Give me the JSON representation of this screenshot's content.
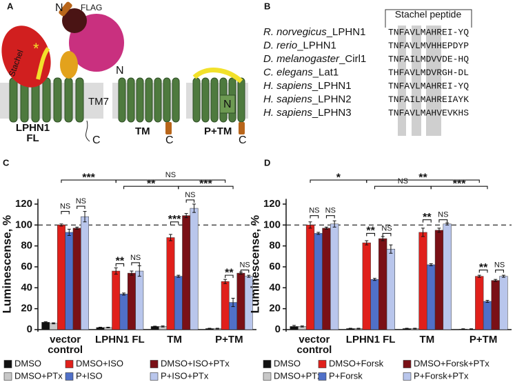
{
  "panels": {
    "a": "A",
    "b": "B",
    "c": "C",
    "d": "D"
  },
  "diagram": {
    "n_label": "N",
    "flag": "FLAG",
    "stachel": "Stachel",
    "star": "*",
    "tm7": "TM7",
    "fl_label": "LPHN1 FL",
    "c_label": "C",
    "tm_n": "N",
    "tm_label": "TM",
    "tm_c": "C",
    "ptm_n": "N",
    "ptm_label": "P+TM",
    "ptm_c": "C"
  },
  "alignment": {
    "title": "Stachel peptide",
    "rows": [
      {
        "species": "R. norvegicus",
        "gene": "_LPHN1",
        "sequence": "TNFAVLMAHREI-YQ"
      },
      {
        "species": "D. rerio",
        "gene": "_LPHN1",
        "sequence": "TNFAVLMVHHEPDYP"
      },
      {
        "species": "D. melanogaster",
        "gene": "_Cirl1",
        "sequence": "TNFAILMDVVDE-HQ"
      },
      {
        "species": "C. elegans",
        "gene": "_Lat1",
        "sequence": "THFAVLMDVRGH-DL"
      },
      {
        "species": "H. sapiens",
        "gene": "_LPHN1",
        "sequence": "TNFAVLMAHREI-YQ"
      },
      {
        "species": "H. sapiens",
        "gene": "_LPHN2",
        "sequence": "TNFAILMAHREIAYK"
      },
      {
        "species": "H. sapiens",
        "gene": "_LPHN3",
        "sequence": "TNFAVLMAHVEVKHS"
      }
    ]
  },
  "chart_data": [
    {
      "type": "bar",
      "ylabel": "Luminescense, %",
      "categories": [
        "vector control",
        "LPHN1 FL",
        "TM",
        "P+TM"
      ],
      "ylim": [
        0,
        125
      ],
      "yticks": [
        0,
        20,
        40,
        60,
        80,
        100,
        120
      ],
      "reference_line": 100,
      "series": [
        {
          "name": "DMSO",
          "color": "#111111",
          "values": [
            7,
            2,
            3,
            1
          ],
          "errors": [
            0.5,
            0.3,
            0.3,
            0.3
          ]
        },
        {
          "name": "DMSO+PTx",
          "color": "#c8c8c8",
          "values": [
            6,
            2,
            3,
            1
          ],
          "errors": [
            0.5,
            0.3,
            0.5,
            0.3
          ]
        },
        {
          "name": "DMSO+ISO",
          "color": "#e0201b",
          "values": [
            100,
            56,
            88,
            46
          ],
          "errors": [
            1,
            3,
            3,
            2
          ]
        },
        {
          "name": "P+ISO",
          "color": "#5070c8",
          "values": [
            93,
            34,
            51,
            26
          ],
          "errors": [
            3,
            1,
            1,
            4
          ]
        },
        {
          "name": "DMSO+ISO+PTx",
          "color": "#7a1016",
          "values": [
            97,
            54,
            109,
            54
          ],
          "errors": [
            1,
            2,
            2,
            1
          ]
        },
        {
          "name": "P+ISO+PTx",
          "color": "#b9c6ec",
          "values": [
            108,
            56,
            116,
            51
          ],
          "errors": [
            5,
            5,
            4,
            1
          ]
        }
      ],
      "annotations": [
        "***",
        "NS",
        "**",
        "***",
        "NS",
        "NS",
        "**",
        "NS",
        "***",
        "NS",
        "**",
        "NS"
      ]
    },
    {
      "type": "bar",
      "ylabel": "Luminescense, %",
      "categories": [
        "vector control",
        "LPHN1 FL",
        "TM",
        "P+TM"
      ],
      "ylim": [
        0,
        125
      ],
      "yticks": [
        0,
        20,
        40,
        60,
        80,
        100,
        120
      ],
      "reference_line": 100,
      "series": [
        {
          "name": "DMSO",
          "color": "#111111",
          "values": [
            3,
            1,
            1,
            0.5
          ],
          "errors": [
            1,
            0.3,
            0.3,
            0.3
          ]
        },
        {
          "name": "DMSO+PTx",
          "color": "#c8c8c8",
          "values": [
            3,
            1,
            1,
            0.5
          ],
          "errors": [
            0.5,
            0.3,
            0.3,
            0.3
          ]
        },
        {
          "name": "DMSO+Forsk",
          "color": "#e0201b",
          "values": [
            100,
            83,
            93,
            51
          ],
          "errors": [
            3,
            2,
            4,
            1
          ]
        },
        {
          "name": "P+Forsk",
          "color": "#5070c8",
          "values": [
            92,
            48,
            62,
            27
          ],
          "errors": [
            1,
            1,
            1,
            1
          ]
        },
        {
          "name": "DMSO+Forsk+PTx",
          "color": "#7a1016",
          "values": [
            97,
            87,
            95,
            47
          ],
          "errors": [
            1,
            2,
            2,
            1
          ]
        },
        {
          "name": "P+Forsk+PTx",
          "color": "#b9c6ec",
          "values": [
            101,
            77,
            101,
            51
          ],
          "errors": [
            3,
            4,
            1,
            1
          ]
        }
      ],
      "annotations": [
        "*",
        "**",
        "NS",
        "***",
        "NS",
        "NS",
        "**",
        "NS",
        "**",
        "NS",
        "**",
        "NS"
      ]
    }
  ]
}
